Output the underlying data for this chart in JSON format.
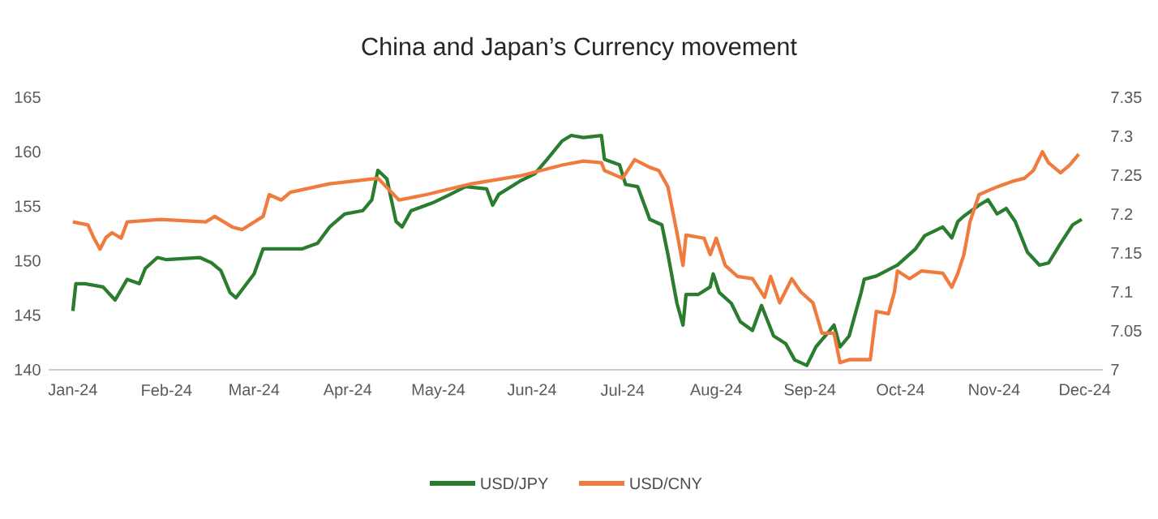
{
  "chart_data": {
    "type": "line",
    "title": "China and Japan’s Currency movement",
    "xlim": [
      "2023-12-24",
      "2024-12-07"
    ],
    "xticks": [
      {
        "value": "2024-01-01",
        "label": "Jan-24"
      },
      {
        "value": "2024-02-01",
        "label": "Feb-24"
      },
      {
        "value": "2024-03-01",
        "label": "Mar-24"
      },
      {
        "value": "2024-04-01",
        "label": "Apr-24"
      },
      {
        "value": "2024-05-01",
        "label": "May-24"
      },
      {
        "value": "2024-06-01",
        "label": "Jun-24"
      },
      {
        "value": "2024-07-01",
        "label": "Jul-24"
      },
      {
        "value": "2024-08-01",
        "label": "Aug-24"
      },
      {
        "value": "2024-09-01",
        "label": "Sep-24"
      },
      {
        "value": "2024-10-01",
        "label": "Oct-24"
      },
      {
        "value": "2024-11-01",
        "label": "Nov-24"
      },
      {
        "value": "2024-12-01",
        "label": "Dec-24"
      }
    ],
    "ylim": [
      140,
      165
    ],
    "yticks": [
      140,
      145,
      150,
      155,
      160,
      165
    ],
    "y2lim": [
      7,
      7.35
    ],
    "y2ticks": [
      7,
      7.05,
      7.1,
      7.15,
      7.2,
      7.25,
      7.3,
      7.35
    ],
    "legend": "bottom",
    "series": [
      {
        "name": "USD/JPY",
        "color": "#2a7d2e",
        "x": [
          "2024-01-01",
          "2024-01-02",
          "2024-01-05",
          "2024-01-11",
          "2024-01-15",
          "2024-01-19",
          "2024-01-23",
          "2024-01-25",
          "2024-01-29",
          "2024-02-01",
          "2024-02-12",
          "2024-02-16",
          "2024-02-19",
          "2024-02-22",
          "2024-02-24",
          "2024-03-01",
          "2024-03-04",
          "2024-03-17",
          "2024-03-22",
          "2024-03-26",
          "2024-03-31",
          "2024-04-06",
          "2024-04-09",
          "2024-04-11",
          "2024-04-14",
          "2024-04-17",
          "2024-04-19",
          "2024-04-22",
          "2024-04-29",
          "2024-05-05",
          "2024-05-10",
          "2024-05-17",
          "2024-05-19",
          "2024-05-21",
          "2024-05-28",
          "2024-06-02",
          "2024-06-06",
          "2024-06-11",
          "2024-06-14",
          "2024-06-18",
          "2024-06-24",
          "2024-06-25",
          "2024-06-30",
          "2024-07-02",
          "2024-07-06",
          "2024-07-10",
          "2024-07-14",
          "2024-07-16",
          "2024-07-19",
          "2024-07-21",
          "2024-07-22",
          "2024-07-26",
          "2024-07-30",
          "2024-07-31",
          "2024-08-02",
          "2024-08-06",
          "2024-08-09",
          "2024-08-13",
          "2024-08-16",
          "2024-08-20",
          "2024-08-24",
          "2024-08-27",
          "2024-08-31",
          "2024-09-03",
          "2024-09-07",
          "2024-09-09",
          "2024-09-11",
          "2024-09-14",
          "2024-09-18",
          "2024-09-19",
          "2024-09-23",
          "2024-09-30",
          "2024-10-06",
          "2024-10-09",
          "2024-10-15",
          "2024-10-18",
          "2024-10-20",
          "2024-10-22",
          "2024-10-27",
          "2024-10-30",
          "2024-11-02",
          "2024-11-05",
          "2024-11-08",
          "2024-11-12",
          "2024-11-16",
          "2024-11-19",
          "2024-11-23",
          "2024-11-27",
          "2024-11-30"
        ],
        "values": [
          145.4,
          147.9,
          147.9,
          147.6,
          146.4,
          148.3,
          147.9,
          149.3,
          150.3,
          150.1,
          150.3,
          149.8,
          149.1,
          147.1,
          146.6,
          148.8,
          151.1,
          151.1,
          151.6,
          153.1,
          154.3,
          154.6,
          155.6,
          158.3,
          157.5,
          153.6,
          153.1,
          154.6,
          155.3,
          156.1,
          156.8,
          156.6,
          155.1,
          156.1,
          157.3,
          158.0,
          159.3,
          161.0,
          161.5,
          161.3,
          161.5,
          159.3,
          158.8,
          157.0,
          156.8,
          153.8,
          153.3,
          150.6,
          146.1,
          144.1,
          146.9,
          146.9,
          147.6,
          148.8,
          147.1,
          146.1,
          144.4,
          143.6,
          145.9,
          143.1,
          142.4,
          140.9,
          140.4,
          142.1,
          143.4,
          144.1,
          142.1,
          143.1,
          147.1,
          148.3,
          148.6,
          149.6,
          151.1,
          152.3,
          153.1,
          152.1,
          153.6,
          154.1,
          155.1,
          155.6,
          154.3,
          154.8,
          153.6,
          150.8,
          149.6,
          149.8,
          151.6,
          153.3,
          153.8
        ]
      },
      {
        "name": "USD/CNY",
        "color": "#f07b3f",
        "axis": "y2",
        "x": [
          "2024-01-01",
          "2024-01-06",
          "2024-01-08",
          "2024-01-10",
          "2024-01-12",
          "2024-01-14",
          "2024-01-17",
          "2024-01-19",
          "2024-01-30",
          "2024-02-14",
          "2024-02-17",
          "2024-02-23",
          "2024-02-26",
          "2024-03-04",
          "2024-03-06",
          "2024-03-10",
          "2024-03-13",
          "2024-03-26",
          "2024-04-11",
          "2024-04-18",
          "2024-04-27",
          "2024-05-12",
          "2024-05-28",
          "2024-06-11",
          "2024-06-18",
          "2024-06-24",
          "2024-06-25",
          "2024-07-01",
          "2024-07-05",
          "2024-07-10",
          "2024-07-13",
          "2024-07-16",
          "2024-07-19",
          "2024-07-21",
          "2024-07-22",
          "2024-07-28",
          "2024-07-30",
          "2024-08-01",
          "2024-08-04",
          "2024-08-08",
          "2024-08-13",
          "2024-08-17",
          "2024-08-19",
          "2024-08-22",
          "2024-08-26",
          "2024-08-29",
          "2024-09-02",
          "2024-09-05",
          "2024-09-09",
          "2024-09-11",
          "2024-09-14",
          "2024-09-21",
          "2024-09-23",
          "2024-09-27",
          "2024-09-29",
          "2024-09-30",
          "2024-10-04",
          "2024-10-08",
          "2024-10-15",
          "2024-10-18",
          "2024-10-20",
          "2024-10-22",
          "2024-10-24",
          "2024-10-27",
          "2024-11-02",
          "2024-11-07",
          "2024-11-11",
          "2024-11-14",
          "2024-11-17",
          "2024-11-19",
          "2024-11-23",
          "2024-11-26",
          "2024-11-29"
        ],
        "values": [
          7.19,
          7.186,
          7.169,
          7.155,
          7.17,
          7.176,
          7.169,
          7.19,
          7.193,
          7.19,
          7.197,
          7.183,
          7.18,
          7.197,
          7.225,
          7.218,
          7.228,
          7.239,
          7.246,
          7.218,
          7.225,
          7.239,
          7.249,
          7.263,
          7.268,
          7.266,
          7.256,
          7.246,
          7.27,
          7.26,
          7.256,
          7.235,
          7.176,
          7.134,
          7.173,
          7.169,
          7.148,
          7.169,
          7.134,
          7.12,
          7.117,
          7.093,
          7.12,
          7.086,
          7.117,
          7.1,
          7.086,
          7.047,
          7.047,
          7.009,
          7.013,
          7.013,
          7.075,
          7.072,
          7.1,
          7.127,
          7.117,
          7.127,
          7.124,
          7.106,
          7.124,
          7.148,
          7.19,
          7.225,
          7.235,
          7.242,
          7.246,
          7.256,
          7.28,
          7.266,
          7.253,
          7.263,
          7.277
        ]
      }
    ]
  }
}
